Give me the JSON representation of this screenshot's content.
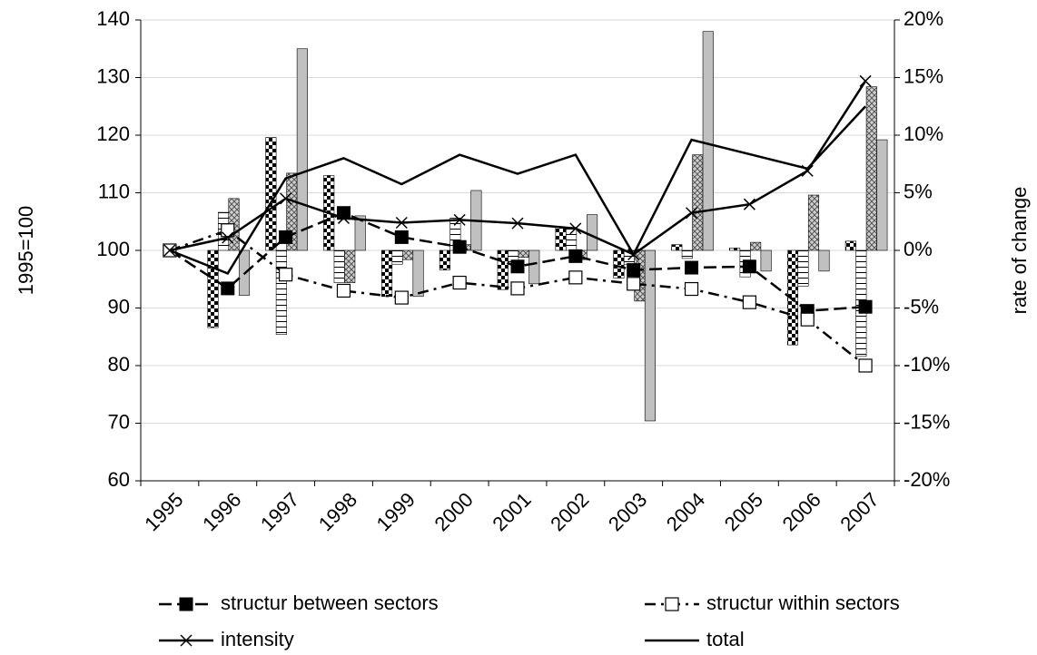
{
  "chart_data": {
    "type": "bar-line",
    "y_label": "1995=100",
    "y2_label": "rate of change",
    "categories": [
      "1995",
      "1996",
      "1997",
      "1998",
      "1999",
      "2000",
      "2001",
      "2002",
      "2003",
      "2004",
      "2005",
      "2006",
      "2007"
    ],
    "ylim": [
      60,
      140
    ],
    "yticks": [
      60,
      70,
      80,
      90,
      100,
      110,
      120,
      130,
      140
    ],
    "y2lim": [
      -20,
      20
    ],
    "y2ticks": [
      {
        "value": -20,
        "label": "-20%"
      },
      {
        "value": -15,
        "label": "-15%"
      },
      {
        "value": -10,
        "label": "-10%"
      },
      {
        "value": -5,
        "label": "-5%"
      },
      {
        "value": 0,
        "label": "0%"
      },
      {
        "value": 5,
        "label": "5%"
      },
      {
        "value": 10,
        "label": "10%"
      },
      {
        "value": 15,
        "label": "15%"
      },
      {
        "value": 20,
        "label": "20%"
      }
    ],
    "grid": true,
    "legend": "bottom",
    "series": [
      {
        "name": "structur between sectors",
        "color": "#000000",
        "line_style": "dashed",
        "marker": "filled-square",
        "bar_pattern": "checker",
        "values": [
          100,
          93.4,
          102.3,
          106.5,
          102.3,
          100.6,
          97.2,
          99,
          96.6,
          97,
          97.2,
          89.5,
          90.2
        ],
        "rates": [
          null,
          -6.7,
          9.8,
          6.5,
          -4.0,
          -1.7,
          -3.4,
          2.0,
          -2.4,
          0.5,
          0.2,
          -8.2,
          0.8
        ]
      },
      {
        "name": "structur within sectors",
        "color": "#000000",
        "line_style": "dash-dot",
        "marker": "open-square",
        "bar_pattern": "stripes",
        "values": [
          100,
          103.5,
          95.8,
          93,
          91.8,
          94.4,
          93.4,
          95.3,
          94.2,
          93.3,
          91,
          88,
          80
        ],
        "rates": [
          null,
          3.3,
          -7.3,
          -2.8,
          -1.2,
          2.8,
          -1.2,
          2.0,
          -1.2,
          -0.7,
          -2.3,
          -3.1,
          -9.2
        ]
      },
      {
        "name": "intensity",
        "color": "#000000",
        "line_style": "solid",
        "marker": "x",
        "bar_pattern": "crosshatch",
        "values": [
          100,
          102.2,
          109,
          105.6,
          104.8,
          105.3,
          104.7,
          103.8,
          99.3,
          106.5,
          108,
          113.8,
          129.4
        ],
        "rates": [
          null,
          4.5,
          6.7,
          -2.8,
          -0.8,
          0.5,
          -0.6,
          -0.8,
          -4.4,
          8.3,
          0.7,
          4.8,
          14.2
        ]
      },
      {
        "name": "total",
        "color": "#000000",
        "line_style": "solid",
        "marker": "none",
        "bar_pattern": "solid",
        "values": [
          100,
          96,
          112.5,
          116,
          111.5,
          116.6,
          113.3,
          116.6,
          99.3,
          119.2,
          116.7,
          114.2,
          125
        ],
        "rates": [
          null,
          -3.9,
          17.5,
          3.0,
          -4.0,
          5.2,
          -2.9,
          3.1,
          -14.8,
          19.0,
          -1.8,
          -1.8,
          9.6
        ]
      }
    ]
  }
}
